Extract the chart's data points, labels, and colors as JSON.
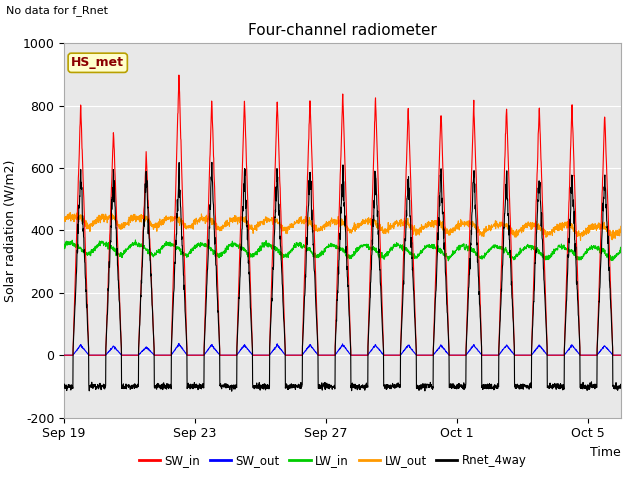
{
  "title": "Four-channel radiometer",
  "top_left_text": "No data for f_Rnet",
  "station_label": "HS_met",
  "xlabel": "Time",
  "ylabel": "Solar radiation (W/m2)",
  "ylim": [
    -200,
    1000
  ],
  "x_ticks_labels": [
    "Sep 19",
    "Sep 23",
    "Sep 27",
    "Oct 1",
    "Oct 5"
  ],
  "x_ticks_positions": [
    0,
    4,
    8,
    12,
    16
  ],
  "legend_entries": [
    "SW_in",
    "SW_out",
    "LW_in",
    "LW_out",
    "Rnet_4way"
  ],
  "legend_colors": [
    "#ff0000",
    "#0000ff",
    "#00cc00",
    "#ff9900",
    "#000000"
  ],
  "background_color": "#e8e8e8",
  "fig_background": "#ffffff",
  "n_days": 17,
  "ppd": 144,
  "sw_in_peak": 820,
  "lw_in_base": 340,
  "lw_out_base": 430,
  "rnet_peak": 640,
  "rnet_night": -100,
  "title_fontsize": 11,
  "axis_fontsize": 9,
  "tick_fontsize": 9
}
